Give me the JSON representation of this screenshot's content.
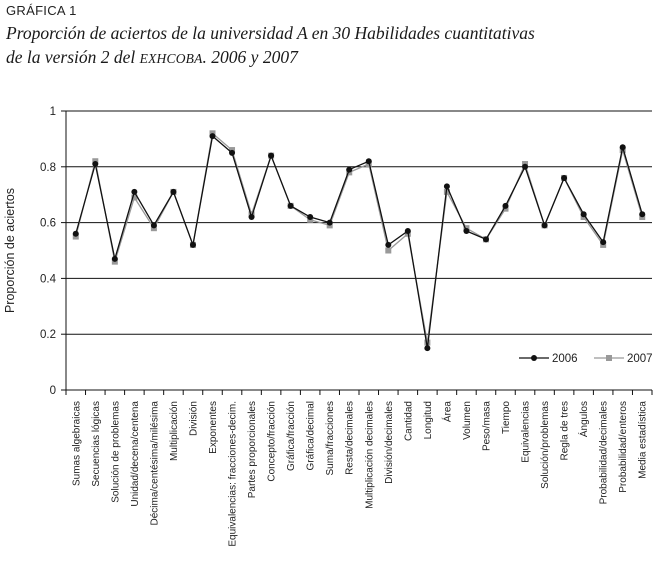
{
  "figure": {
    "label": "GRÁFICA 1",
    "title_line1": "Proporción de aciertos de la universidad A en 30 Habilidades cuantitativas",
    "title_line2_a": "de la versión 2 del ",
    "title_line2_b": "EXHCOBA",
    "title_line2_c": ". 2006 y 2007"
  },
  "chart_data": {
    "type": "line",
    "title": "Proporción de aciertos de la universidad A en 30 Habilidades cuantitativas de la versión 2 del EXHCOBA. 2006 y 2007",
    "xlabel": "",
    "ylabel": "Proporción de aciertos",
    "ylim": [
      0,
      1
    ],
    "yticks": [
      0,
      0.2,
      0.4,
      0.6,
      0.8,
      1
    ],
    "ytick_labels": [
      "0",
      "0.2",
      "0.4",
      "0.6",
      "0.8",
      "1"
    ],
    "grid": "horizontal",
    "legend_position": "bottom-right",
    "categories": [
      "Sumas algebraicas",
      "Secuencias lógicas",
      "Solución de problemas",
      "Unidad/decena/centena",
      "Décima/centésima/milésima",
      "Multiplicación",
      "División",
      "Exponentes",
      "Equivalencias: fracciones-decim.",
      "Partes proporcionales",
      "Concepto/fracción",
      "Gráfica/fracción",
      "Gráfica/decimal",
      "Suma/fracciones",
      "Resta/decimales",
      "Multiplicación decimales",
      "División/decimales",
      "Cantidad",
      "Longitud",
      "Área",
      "Volumen",
      "Peso/masa",
      "Tiempo",
      "Equivalencias",
      "Solución/problemas",
      "Regla de tres",
      "Ángulos",
      "Probabilidad/decimales",
      "Probabilidad/enteros",
      "Media estadística"
    ],
    "series": [
      {
        "name": "2006",
        "color": "#111111",
        "marker": "circle",
        "values": [
          0.56,
          0.81,
          0.47,
          0.71,
          0.59,
          0.71,
          0.52,
          0.91,
          0.85,
          0.62,
          0.84,
          0.66,
          0.62,
          0.6,
          0.79,
          0.82,
          0.52,
          0.57,
          0.15,
          0.73,
          0.57,
          0.54,
          0.66,
          0.8,
          0.59,
          0.76,
          0.63,
          0.53,
          0.87,
          0.63
        ]
      },
      {
        "name": "2007",
        "color": "#999999",
        "marker": "square",
        "values": [
          0.55,
          0.82,
          0.46,
          0.69,
          0.58,
          0.71,
          0.52,
          0.92,
          0.86,
          0.63,
          0.84,
          0.66,
          0.61,
          0.59,
          0.78,
          0.81,
          0.5,
          0.56,
          0.17,
          0.71,
          0.58,
          0.54,
          0.65,
          0.81,
          0.59,
          0.76,
          0.62,
          0.52,
          0.86,
          0.62
        ]
      }
    ]
  }
}
